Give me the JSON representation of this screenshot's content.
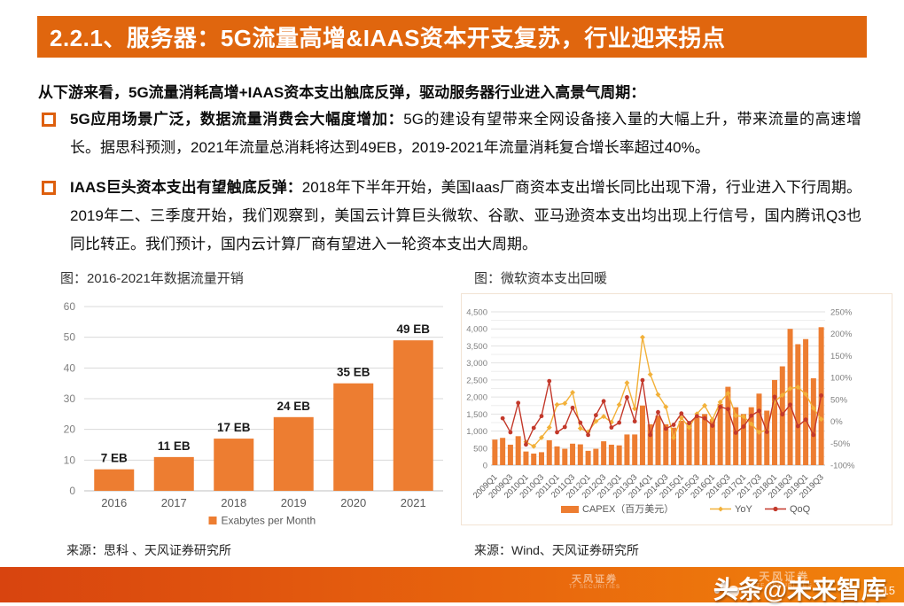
{
  "slide": {
    "title": "2.2.1、服务器：5G流量高增&IAAS资本开支复苏，行业迎来拐点",
    "intro": "从下游来看，5G流量消耗高增+IAAS资本支出触底反弹，驱动服务器行业进入高景气周期：",
    "bullets": [
      {
        "lead": "5G应用场景广泛，数据流量消费会大幅度增加：",
        "body": "5G的建设有望带来全网设备接入量的大幅上升，带来流量的高速增长。据思科预测，2021年流量总消耗将达到49EB，2019-2021年流量消耗复合增长率超过40%。"
      },
      {
        "lead": "IAAS巨头资本支出有望触底反弹：",
        "body": "2018年下半年开始，美国Iaas厂商资本支出增长同比出现下滑，行业进入下行周期。2019年二、三季度开始，我们观察到，美国云计算巨头微软、谷歌、亚马逊资本支出均出现上行信号，国内腾讯Q3也同比转正。我们预计，国内云计算厂商有望进入一轮资本支出大周期。"
      }
    ],
    "sources": {
      "left": "来源：思科 、天风证券研究所",
      "right": "来源：Wind、天风证券研究所"
    },
    "footer": {
      "brand": "头条@未来智库",
      "page": "15",
      "watermark_cn": "天风证券",
      "watermark_en": "TF SECURITIES"
    }
  },
  "colors": {
    "accent_orange": "#e0660e",
    "bar_orange": "#ed7d31",
    "yoy_yellow": "#f2b13a",
    "qoq_red": "#c3392b",
    "grid_gray": "#d9d9d9",
    "axis_gray": "#bfbfbf",
    "label_gray": "#808080",
    "tick_gray": "#595959"
  },
  "chart_data": [
    {
      "type": "bar",
      "title": "图：2016-2021年数据流量开销",
      "categories": [
        "2016",
        "2017",
        "2018",
        "2019",
        "2020",
        "2021"
      ],
      "values": [
        7,
        11,
        17,
        24,
        35,
        49
      ],
      "bar_labels": [
        "7 EB",
        "11 EB",
        "17 EB",
        "24 EB",
        "35 EB",
        "49 EB"
      ],
      "legend": [
        "Exabytes per Month"
      ],
      "xlabel": "",
      "ylabel": "",
      "ylim": [
        0,
        60
      ],
      "yticks": [
        0,
        10,
        20,
        30,
        40,
        50,
        60
      ],
      "grid": true,
      "legend_position": "bottom",
      "bar_color": "#ed7d31"
    },
    {
      "type": "combo-bar-line",
      "title": "图：微软资本支出回暖",
      "x": [
        "2009Q1",
        "2009Q2",
        "2009Q3",
        "2009Q4",
        "2010Q1",
        "2010Q2",
        "2010Q3",
        "2010Q4",
        "2011Q1",
        "2011Q2",
        "2011Q3",
        "2011Q4",
        "2012Q1",
        "2012Q2",
        "2012Q3",
        "2012Q4",
        "2013Q1",
        "2013Q2",
        "2013Q3",
        "2013Q4",
        "2014Q1",
        "2014Q2",
        "2014Q3",
        "2014Q4",
        "2015Q1",
        "2015Q2",
        "2015Q3",
        "2015Q4",
        "2016Q1",
        "2016Q2",
        "2016Q3",
        "2016Q4",
        "2017Q1",
        "2017Q2",
        "2017Q3",
        "2017Q4",
        "2018Q1",
        "2018Q2",
        "2018Q3",
        "2018Q4",
        "2019Q1",
        "2019Q2",
        "2019Q3"
      ],
      "x_tick_labels": [
        "2009Q1",
        "2009Q3",
        "2010Q1",
        "2010Q3",
        "2011Q1",
        "2011Q3",
        "2012Q1",
        "2012Q3",
        "2013Q1",
        "2013Q3",
        "2014Q1",
        "2014Q3",
        "2015Q1",
        "2015Q3",
        "2016Q1",
        "2016Q3",
        "2017Q1",
        "2017Q3",
        "2018Q1",
        "2018Q3",
        "2019Q1",
        "2019Q3"
      ],
      "series": [
        {
          "name": "CAPEX（百万美元）",
          "type": "bar",
          "axis": "left",
          "color": "#ed7d31",
          "values": [
            750,
            800,
            600,
            850,
            400,
            340,
            380,
            730,
            550,
            480,
            630,
            610,
            420,
            480,
            700,
            600,
            580,
            900,
            900,
            1750,
            1200,
            1450,
            1200,
            1100,
            1300,
            1250,
            1400,
            1500,
            1350,
            1800,
            2300,
            1700,
            1500,
            1700,
            2100,
            1600,
            2500,
            2900,
            4000,
            3550,
            3700,
            2550,
            4050
          ]
        },
        {
          "name": "YoY",
          "type": "line",
          "axis": "right",
          "color": "#f2b13a",
          "marker": "diamond",
          "values": [
            null,
            null,
            null,
            null,
            -47,
            -57,
            -37,
            -14,
            38,
            41,
            66,
            -16,
            -24,
            0,
            11,
            -2,
            38,
            88,
            29,
            192,
            107,
            61,
            33,
            -37,
            8,
            -14,
            17,
            36,
            4,
            44,
            64,
            13,
            11,
            -6,
            -25,
            -20,
            45,
            60,
            75,
            78,
            62,
            30,
            5
          ]
        },
        {
          "name": "QoQ",
          "type": "line",
          "axis": "right",
          "color": "#c3392b",
          "marker": "circle",
          "values": [
            null,
            7,
            -25,
            42,
            -53,
            -15,
            12,
            92,
            -25,
            -13,
            31,
            -3,
            -31,
            14,
            46,
            -14,
            -3,
            55,
            0,
            94,
            -31,
            21,
            -17,
            -8,
            18,
            -4,
            12,
            7,
            -10,
            33,
            28,
            -26,
            -12,
            13,
            24,
            -24,
            56,
            16,
            38,
            -11,
            4,
            -31,
            59
          ]
        }
      ],
      "left_axis": {
        "range": [
          0,
          4500
        ],
        "tick_step": 500
      },
      "right_axis": {
        "range": [
          -100,
          250
        ],
        "tick_step": 50,
        "unit": "%"
      },
      "grid": true,
      "legend_position": "bottom"
    }
  ]
}
